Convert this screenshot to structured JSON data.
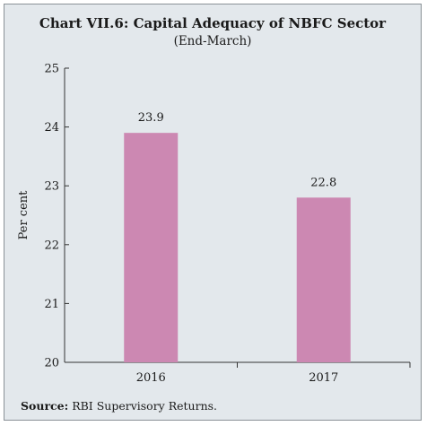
{
  "chart_data": {
    "type": "bar",
    "title": "Chart VII.6: Capital Adequacy of NBFC Sector",
    "subtitle": "(End-March)",
    "categories": [
      "2016",
      "2017"
    ],
    "values": [
      23.9,
      22.8
    ],
    "data_labels": [
      "23.9",
      "22.8"
    ],
    "ylabel": "Per cent",
    "xlabel": "",
    "ylim": [
      20,
      25
    ],
    "yticks": [
      20,
      21,
      22,
      23,
      24,
      25
    ],
    "bar_color": "#cc88b2",
    "grid": false,
    "legend": "none"
  },
  "source": {
    "label": "Source:",
    "text": "RBI Supervisory Returns."
  }
}
